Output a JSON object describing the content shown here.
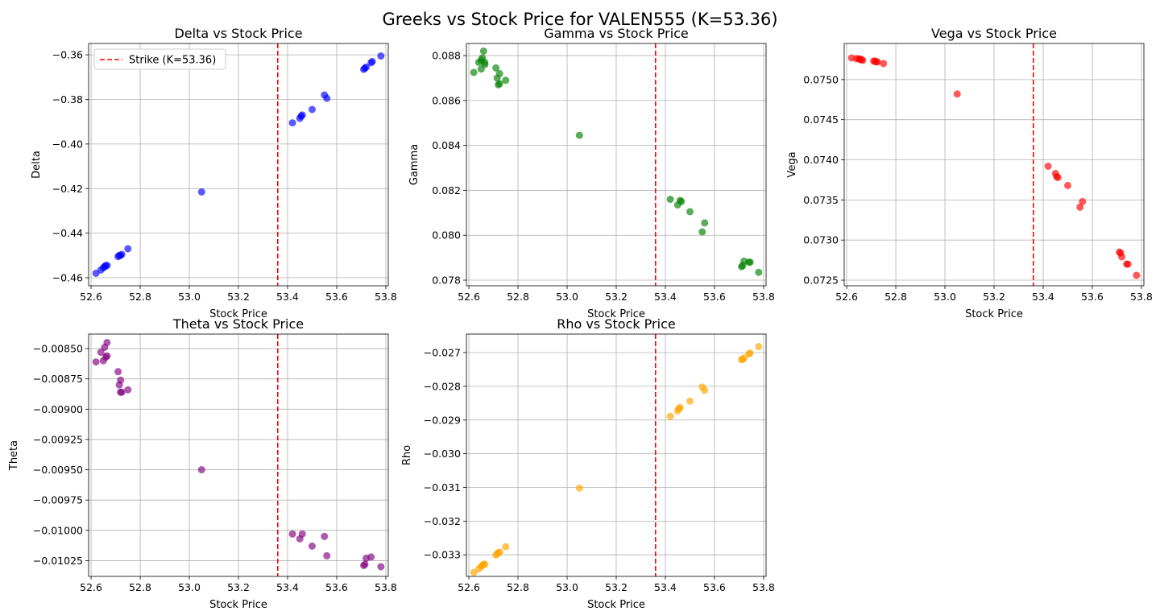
{
  "figure_title": "Greeks vs Stock Price for VALEN555 (K=53.36)",
  "colors": {
    "delta": "#0000ff",
    "gamma": "#008000",
    "vega": "#ff0000",
    "theta": "#800080",
    "rho": "#ffa500",
    "strike": "#ff0000",
    "grid": "#b0b0b0"
  },
  "chart_data": [
    {
      "type": "scatter",
      "id": "delta",
      "title": "Delta vs Stock Price",
      "xlabel": "Stock Price",
      "ylabel": "Delta",
      "xlim": [
        52.59,
        53.81
      ],
      "ylim": [
        -0.4636,
        -0.3549
      ],
      "xticks": [
        52.6,
        52.8,
        53.0,
        53.2,
        53.4,
        53.6,
        53.8
      ],
      "xtick_labels": [
        "52.6",
        "52.8",
        "53.0",
        "53.2",
        "53.4",
        "53.6",
        "53.8"
      ],
      "yticks": [
        -0.46,
        -0.44,
        -0.42,
        -0.4,
        -0.38,
        -0.36
      ],
      "ytick_labels": [
        "−0.46",
        "−0.44",
        "−0.42",
        "−0.40",
        "−0.38",
        "−0.36"
      ],
      "grid": true,
      "strike": 53.36,
      "legend": {
        "label": "Strike (K=53.36)",
        "position": "upper-left"
      },
      "points": [
        [
          52.62,
          -0.458
        ],
        [
          52.64,
          -0.4565
        ],
        [
          52.65,
          -0.4555
        ],
        [
          52.655,
          -0.455
        ],
        [
          52.66,
          -0.4545
        ],
        [
          52.665,
          -0.4545
        ],
        [
          52.71,
          -0.4505
        ],
        [
          52.715,
          -0.45
        ],
        [
          52.72,
          -0.45
        ],
        [
          52.725,
          -0.4495
        ],
        [
          52.75,
          -0.447
        ],
        [
          53.05,
          -0.4215
        ],
        [
          53.42,
          -0.3905
        ],
        [
          53.45,
          -0.3885
        ],
        [
          53.455,
          -0.3875
        ],
        [
          53.46,
          -0.387
        ],
        [
          53.5,
          -0.3845
        ],
        [
          53.55,
          -0.378
        ],
        [
          53.56,
          -0.3795
        ],
        [
          53.71,
          -0.3665
        ],
        [
          53.715,
          -0.366
        ],
        [
          53.72,
          -0.3655
        ],
        [
          53.74,
          -0.3635
        ],
        [
          53.745,
          -0.363
        ],
        [
          53.78,
          -0.3605
        ]
      ]
    },
    {
      "type": "scatter",
      "id": "gamma",
      "title": "Gamma vs Stock Price",
      "xlabel": "Stock Price",
      "ylabel": "Gamma",
      "xlim": [
        52.59,
        53.81
      ],
      "ylim": [
        0.07775,
        0.08854
      ],
      "xticks": [
        52.6,
        52.8,
        53.0,
        53.2,
        53.4,
        53.6,
        53.8
      ],
      "xtick_labels": [
        "52.6",
        "52.8",
        "53.0",
        "53.2",
        "53.4",
        "53.6",
        "53.8"
      ],
      "yticks": [
        0.078,
        0.08,
        0.082,
        0.084,
        0.086,
        0.088
      ],
      "ytick_labels": [
        "0.078",
        "0.080",
        "0.082",
        "0.084",
        "0.086",
        "0.088"
      ],
      "grid": true,
      "strike": 53.36,
      "points": [
        [
          52.62,
          0.08725
        ],
        [
          52.64,
          0.0877
        ],
        [
          52.65,
          0.0874
        ],
        [
          52.65,
          0.0878
        ],
        [
          52.655,
          0.0879
        ],
        [
          52.66,
          0.0882
        ],
        [
          52.665,
          0.0877
        ],
        [
          52.665,
          0.0876
        ],
        [
          52.71,
          0.08745
        ],
        [
          52.715,
          0.087
        ],
        [
          52.72,
          0.0867
        ],
        [
          52.725,
          0.0872
        ],
        [
          52.725,
          0.08675
        ],
        [
          52.75,
          0.0869
        ],
        [
          53.05,
          0.08445
        ],
        [
          53.42,
          0.0816
        ],
        [
          53.45,
          0.08135
        ],
        [
          53.46,
          0.08155
        ],
        [
          53.465,
          0.0815
        ],
        [
          53.5,
          0.08105
        ],
        [
          53.55,
          0.08015
        ],
        [
          53.56,
          0.08055
        ],
        [
          53.71,
          0.0786
        ],
        [
          53.715,
          0.07865
        ],
        [
          53.72,
          0.07885
        ],
        [
          53.74,
          0.0788
        ],
        [
          53.745,
          0.0788
        ],
        [
          53.78,
          0.07835
        ]
      ]
    },
    {
      "type": "scatter",
      "id": "vega",
      "title": "Vega vs Stock Price",
      "xlabel": "Stock Price",
      "ylabel": "Vega",
      "xlim": [
        52.59,
        53.81
      ],
      "ylim": [
        0.07243,
        0.07545
      ],
      "xticks": [
        52.6,
        52.8,
        53.0,
        53.2,
        53.4,
        53.6,
        53.8
      ],
      "xtick_labels": [
        "52.6",
        "52.8",
        "53.0",
        "53.2",
        "53.4",
        "53.6",
        "53.8"
      ],
      "yticks": [
        0.0725,
        0.073,
        0.0735,
        0.074,
        0.0745,
        0.075
      ],
      "ytick_labels": [
        "0.0725",
        "0.0730",
        "0.0735",
        "0.0740",
        "0.0745",
        "0.0750"
      ],
      "grid": true,
      "strike": 53.36,
      "points": [
        [
          52.62,
          0.07527
        ],
        [
          52.64,
          0.07526
        ],
        [
          52.65,
          0.07526
        ],
        [
          52.655,
          0.07525
        ],
        [
          52.66,
          0.07525
        ],
        [
          52.665,
          0.07524
        ],
        [
          52.71,
          0.07523
        ],
        [
          52.715,
          0.07523
        ],
        [
          52.72,
          0.07522
        ],
        [
          52.725,
          0.07522
        ],
        [
          52.75,
          0.0752
        ],
        [
          53.05,
          0.07482
        ],
        [
          53.42,
          0.07392
        ],
        [
          53.45,
          0.07383
        ],
        [
          53.455,
          0.07379
        ],
        [
          53.46,
          0.07378
        ],
        [
          53.5,
          0.07368
        ],
        [
          53.55,
          0.07341
        ],
        [
          53.56,
          0.07348
        ],
        [
          53.71,
          0.07285
        ],
        [
          53.715,
          0.07284
        ],
        [
          53.72,
          0.07279
        ],
        [
          53.74,
          0.0727
        ],
        [
          53.745,
          0.0727
        ],
        [
          53.78,
          0.07256
        ]
      ]
    },
    {
      "type": "scatter",
      "id": "theta",
      "title": "Theta vs Stock Price",
      "xlabel": "Stock Price",
      "ylabel": "Theta",
      "xlim": [
        52.59,
        53.81
      ],
      "ylim": [
        -0.01038,
        -0.00838
      ],
      "xticks": [
        52.6,
        52.8,
        53.0,
        53.2,
        53.4,
        53.6,
        53.8
      ],
      "xtick_labels": [
        "52.6",
        "52.8",
        "53.0",
        "53.2",
        "53.4",
        "53.6",
        "53.8"
      ],
      "yticks": [
        -0.01025,
        -0.01,
        -0.00975,
        -0.0095,
        -0.00925,
        -0.009,
        -0.00875,
        -0.0085
      ],
      "ytick_labels": [
        "−0.01025",
        "−0.01000",
        "−0.00975",
        "−0.00950",
        "−0.00925",
        "−0.00900",
        "−0.00875",
        "−0.00850"
      ],
      "grid": true,
      "strike": 53.36,
      "points": [
        [
          52.62,
          -0.00861
        ],
        [
          52.64,
          -0.00853
        ],
        [
          52.65,
          -0.0086
        ],
        [
          52.655,
          -0.00849
        ],
        [
          52.66,
          -0.00857
        ],
        [
          52.665,
          -0.00845
        ],
        [
          52.665,
          -0.00856
        ],
        [
          52.71,
          -0.00869
        ],
        [
          52.715,
          -0.0088
        ],
        [
          52.72,
          -0.00876
        ],
        [
          52.72,
          -0.00886
        ],
        [
          52.725,
          -0.00886
        ],
        [
          52.75,
          -0.00884
        ],
        [
          53.05,
          -0.0095
        ],
        [
          53.42,
          -0.01003
        ],
        [
          53.45,
          -0.01007
        ],
        [
          53.46,
          -0.01003
        ],
        [
          53.5,
          -0.01013
        ],
        [
          53.55,
          -0.01005
        ],
        [
          53.56,
          -0.01021
        ],
        [
          53.71,
          -0.01029
        ],
        [
          53.715,
          -0.01028
        ],
        [
          53.72,
          -0.01023
        ],
        [
          53.74,
          -0.01022
        ],
        [
          53.78,
          -0.0103
        ]
      ]
    },
    {
      "type": "scatter",
      "id": "rho",
      "title": "Rho vs Stock Price",
      "xlabel": "Stock Price",
      "ylabel": "Rho",
      "xlim": [
        52.59,
        53.81
      ],
      "ylim": [
        -0.03364,
        -0.02645
      ],
      "xticks": [
        52.6,
        52.8,
        53.0,
        53.2,
        53.4,
        53.6,
        53.8
      ],
      "xtick_labels": [
        "52.6",
        "52.8",
        "53.0",
        "53.2",
        "53.4",
        "53.6",
        "53.8"
      ],
      "yticks": [
        -0.033,
        -0.032,
        -0.031,
        -0.03,
        -0.029,
        -0.028,
        -0.027
      ],
      "ytick_labels": [
        "−0.033",
        "−0.032",
        "−0.031",
        "−0.030",
        "−0.029",
        "−0.028",
        "−0.027"
      ],
      "grid": true,
      "strike": 53.36,
      "points": [
        [
          52.62,
          -0.03352
        ],
        [
          52.64,
          -0.03342
        ],
        [
          52.65,
          -0.03335
        ],
        [
          52.655,
          -0.03331
        ],
        [
          52.66,
          -0.03328
        ],
        [
          52.665,
          -0.03328
        ],
        [
          52.71,
          -0.03301
        ],
        [
          52.715,
          -0.03297
        ],
        [
          52.72,
          -0.03294
        ],
        [
          52.725,
          -0.03292
        ],
        [
          52.75,
          -0.03276
        ],
        [
          53.05,
          -0.03102
        ],
        [
          53.42,
          -0.02889
        ],
        [
          53.45,
          -0.02873
        ],
        [
          53.455,
          -0.02866
        ],
        [
          53.46,
          -0.02863
        ],
        [
          53.5,
          -0.02844
        ],
        [
          53.55,
          -0.02802
        ],
        [
          53.56,
          -0.02812
        ],
        [
          53.71,
          -0.02721
        ],
        [
          53.715,
          -0.0272
        ],
        [
          53.72,
          -0.02716
        ],
        [
          53.74,
          -0.02704
        ],
        [
          53.745,
          -0.02701
        ],
        [
          53.78,
          -0.02682
        ]
      ]
    }
  ]
}
